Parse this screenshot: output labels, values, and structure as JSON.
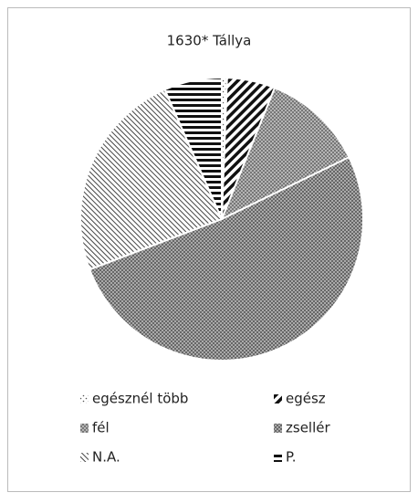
{
  "chart_data": {
    "type": "pie",
    "title": "1630* Tállya",
    "categories": [
      "egésznél több",
      "egész",
      "fél",
      "zsellér",
      "N.A.",
      "P."
    ],
    "values": [
      0.6,
      5.5,
      11.7,
      51.4,
      24.2,
      6.6
    ],
    "legend": "bottom"
  }
}
